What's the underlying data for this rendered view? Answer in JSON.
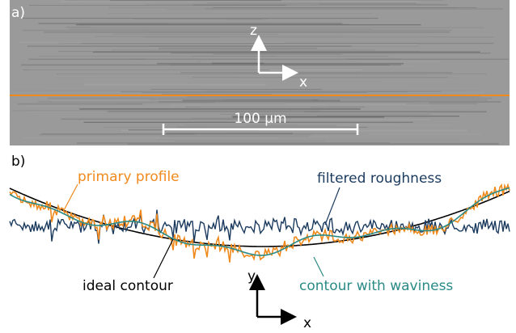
{
  "panel_a": {
    "label": "a)",
    "axis_z": "z",
    "axis_x": "x",
    "scale_bar": "100 µm"
  },
  "panel_b": {
    "label": "b)",
    "primary_profile": "primary profile",
    "filtered_roughness": "filtered roughness",
    "ideal_contour": "ideal contour",
    "contour_with_waviness": "contour with waviness",
    "axis_y": "y",
    "axis_x": "x"
  }
}
